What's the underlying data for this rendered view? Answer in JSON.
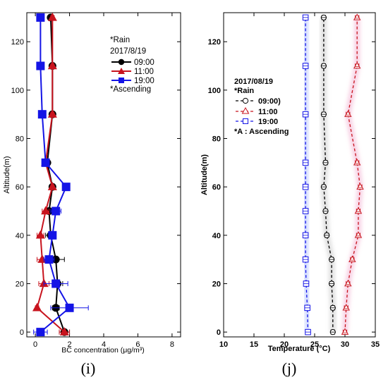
{
  "chart_data": [
    {
      "type": "line",
      "panel_label": "(i)",
      "xlabel": "BC concentration (μg/m³)",
      "ylabel": "Altitude(m)",
      "xlim": [
        -0.5,
        8.5
      ],
      "ylim": [
        -2,
        132
      ],
      "xticks": [
        0,
        2,
        4,
        6,
        8
      ],
      "yticks": [
        0,
        20,
        40,
        60,
        80,
        100,
        120
      ],
      "legend": {
        "position": "top-right",
        "lines": [
          "*Rain",
          "2017/8/19",
          "*Ascending"
        ]
      },
      "series": [
        {
          "name": "09:00",
          "color": "#000000",
          "marker": "circle",
          "filled": true,
          "x": [
            1.7,
            1.2,
            1.3,
            1.2,
            0.9,
            0.8,
            1.0,
            0.7,
            1.0,
            1.0,
            0.9
          ],
          "y": [
            0,
            10,
            20,
            30,
            40,
            50,
            60,
            70,
            90,
            110,
            130
          ],
          "xerr": [
            0.3,
            0.2,
            0.3,
            0.5,
            0.3,
            0.2,
            0.1,
            0.1,
            0.1,
            0.15,
            0.1
          ]
        },
        {
          "name": "11:00",
          "color": "#c8141e",
          "marker": "triangle",
          "filled": true,
          "x": [
            1.7,
            0.1,
            0.5,
            0.4,
            0.3,
            0.6,
            1.0,
            0.6,
            1.0,
            1.0,
            1.0
          ],
          "y": [
            0,
            10,
            20,
            30,
            40,
            50,
            60,
            70,
            90,
            110,
            130
          ],
          "xerr": [
            0.3,
            0.1,
            0.3,
            0.3,
            0.2,
            0.2,
            0.1,
            0.1,
            0.1,
            0.1,
            0.1
          ]
        },
        {
          "name": "19:00",
          "color": "#1414e6",
          "marker": "square",
          "filled": true,
          "x": [
            0.3,
            2.0,
            1.2,
            0.8,
            1.0,
            1.2,
            1.8,
            0.6,
            0.4,
            0.3,
            0.3
          ],
          "y": [
            0,
            10,
            20,
            30,
            40,
            50,
            60,
            70,
            90,
            110,
            130
          ],
          "xerr": [
            0.4,
            1.1,
            0.7,
            0.3,
            0.2,
            0.3,
            0.2,
            0.1,
            0.1,
            0.1,
            0.1
          ]
        }
      ]
    },
    {
      "type": "line",
      "panel_label": "(j)",
      "xlabel": "Temperature (°C)",
      "ylabel": "Altitude(m)",
      "xlim": [
        10,
        35
      ],
      "ylim": [
        -2,
        132
      ],
      "xticks": [
        10,
        15,
        20,
        25,
        30,
        35
      ],
      "yticks": [
        0,
        20,
        40,
        60,
        80,
        100,
        120
      ],
      "legend": {
        "position": "upper-left",
        "lines": [
          "2017/08/19",
          "*Rain",
          "*A : Ascending"
        ]
      },
      "series": [
        {
          "name": "09:00)",
          "color": "#000000",
          "marker": "circle",
          "filled": false,
          "x": [
            28.0,
            28.0,
            27.8,
            27.8,
            27.0,
            26.8,
            26.5,
            26.8,
            26.5,
            26.5,
            26.5
          ],
          "y": [
            0,
            10,
            20,
            30,
            40,
            50,
            60,
            70,
            90,
            110,
            130
          ],
          "xerr": [
            0.3,
            0.3,
            0.3,
            0.3,
            0.3,
            0.3,
            0.3,
            0.3,
            0.3,
            0.3,
            0.3
          ]
        },
        {
          "name": "11:00",
          "color": "#c8141e",
          "marker": "triangle",
          "filled": false,
          "x": [
            30.0,
            30.2,
            30.5,
            31.2,
            32.2,
            32.2,
            32.5,
            32.0,
            30.5,
            32.0,
            32.0
          ],
          "y": [
            0,
            10,
            20,
            30,
            40,
            50,
            60,
            70,
            90,
            110,
            130
          ],
          "xerr": [
            0.3,
            0.3,
            0.3,
            0.3,
            0.3,
            0.3,
            0.3,
            0.3,
            0.3,
            0.3,
            0.3
          ]
        },
        {
          "name": "19:00",
          "color": "#1414e6",
          "marker": "square",
          "filled": false,
          "x": [
            23.9,
            23.8,
            23.6,
            23.5,
            23.5,
            23.5,
            23.5,
            23.5,
            23.5,
            23.5,
            23.5
          ],
          "y": [
            0,
            10,
            20,
            30,
            40,
            50,
            60,
            70,
            90,
            110,
            130
          ],
          "xerr": [
            0.2,
            0.2,
            0.2,
            0.2,
            0.2,
            0.2,
            0.2,
            0.2,
            0.2,
            0.2,
            0.2
          ]
        }
      ]
    }
  ]
}
